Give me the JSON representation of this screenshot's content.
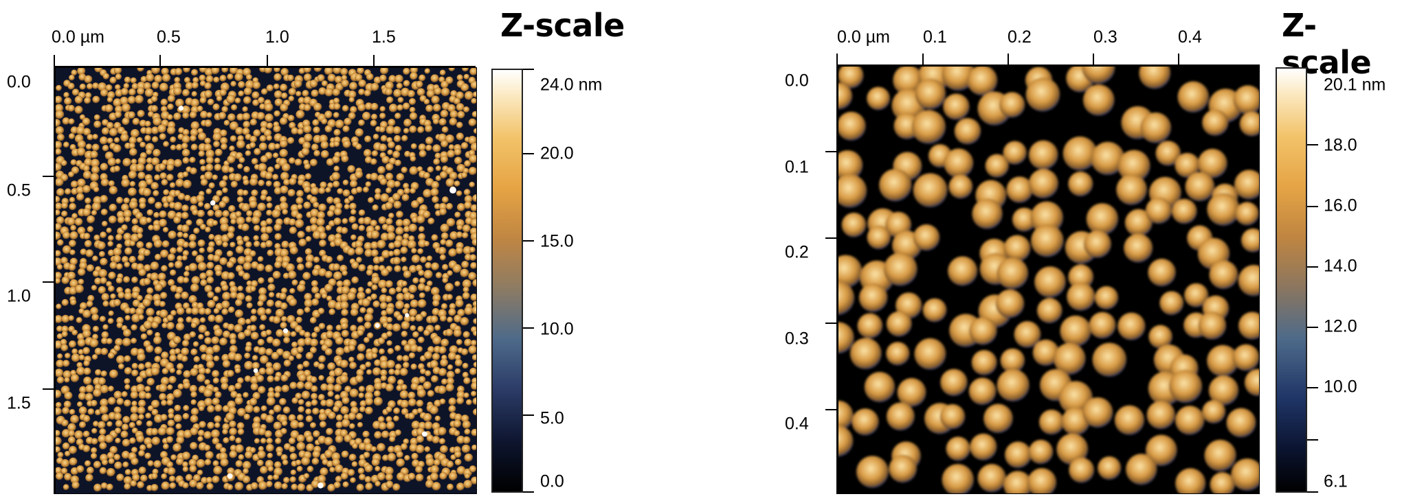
{
  "left_panel": {
    "title": "Z-scale",
    "x_ticks": [
      "0.0 µm",
      "0.5",
      "1.0",
      "1.5"
    ],
    "y_ticks": [
      "0.0",
      "0.5",
      "1.0",
      "1.5"
    ],
    "colorbar_labels": [
      "24.0 nm",
      "20.0",
      "15.0",
      "10.0",
      "5.0",
      "0.0"
    ],
    "colormap": "gold",
    "image_description_shown": false
  },
  "right_panel": {
    "title": "Z-scale",
    "x_ticks": [
      "0.0 µm",
      "0.1",
      "0.2",
      "0.3",
      "0.4"
    ],
    "y_ticks": [
      "0.0",
      "0.1",
      "0.2",
      "0.3",
      "0.4"
    ],
    "colorbar_labels": [
      "20.1 nm",
      "18.0",
      "16.0",
      "14.0",
      "12.0",
      "10.0",
      "6.1"
    ],
    "colormap": "gold"
  },
  "colors": {
    "background_dark": "#0e1428",
    "grain_mid": "#d89b45",
    "grain_bright": "#f6d58e",
    "highlight": "#ffffff"
  }
}
